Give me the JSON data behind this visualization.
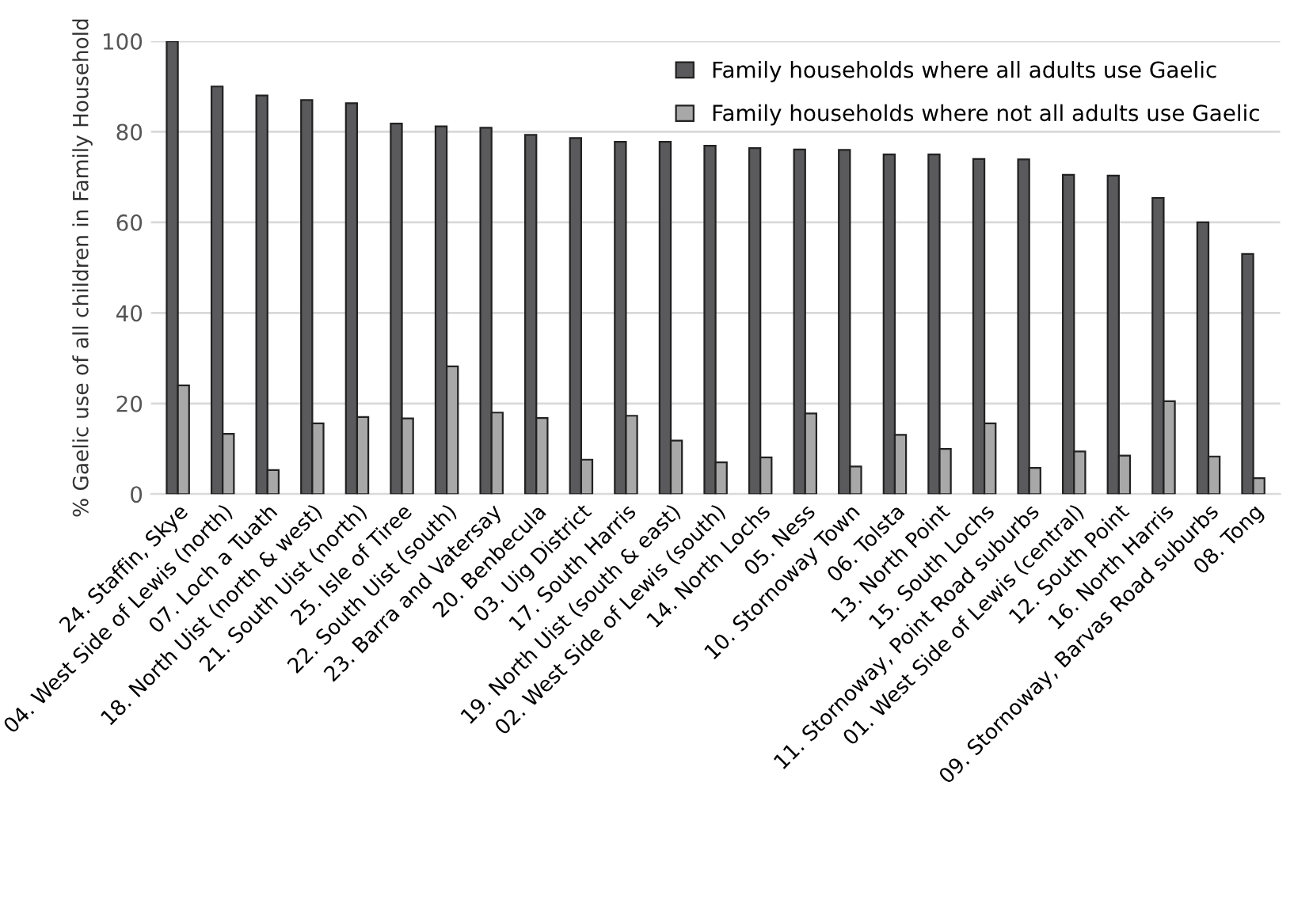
{
  "chart_data": {
    "type": "bar",
    "ylabel": "% Gaelic use of all children in Family Household",
    "categories": [
      "24. Staffin, Skye",
      "04. West Side of Lewis (north)",
      "07. Loch a Tuath",
      "18. North Uist (north & west)",
      "21. South Uist (north)",
      "25. Isle of Tiree",
      "22. South Uist (south)",
      "23. Barra and Vatersay",
      "20. Benbecula",
      "03. Uig District",
      "17. South Harris",
      "19. North Uist (south & east)",
      "02. West Side of Lewis (south)",
      "14. North Lochs",
      "05. Ness",
      "10. Stornoway Town",
      "06. Tolsta",
      "13. North Point",
      "15. South Lochs",
      "11. Stornoway, Point Road suburbs",
      "01. West Side of Lewis (central)",
      "12. South Point",
      "16. North Harris",
      "09. Stornoway, Barvas Road suburbs",
      "08. Tong"
    ],
    "series": [
      {
        "name": "Family households where all adults use Gaelic",
        "color": "#5a5a5c",
        "values": [
          100,
          90,
          88,
          87,
          86.3,
          81.8,
          81.2,
          80.9,
          79.3,
          78.6,
          77.8,
          77.8,
          76.9,
          76.4,
          76.1,
          76,
          75,
          75,
          74,
          73.9,
          70.5,
          70.3,
          65.4,
          60,
          53
        ]
      },
      {
        "name": "Family households where not all adults use Gaelic",
        "color": "#a8a8a8",
        "values": [
          24,
          13.3,
          5.3,
          15.6,
          17,
          16.7,
          28.2,
          18,
          16.8,
          7.6,
          17.3,
          11.8,
          7,
          8.1,
          17.8,
          6.1,
          13.1,
          10,
          15.6,
          5.8,
          9.4,
          8.5,
          20.5,
          8.3,
          3.5
        ]
      }
    ],
    "ylim": [
      0,
      100
    ],
    "yticks": [
      0,
      20,
      40,
      60,
      80,
      100
    ],
    "grid": "y",
    "legend": "top right"
  }
}
